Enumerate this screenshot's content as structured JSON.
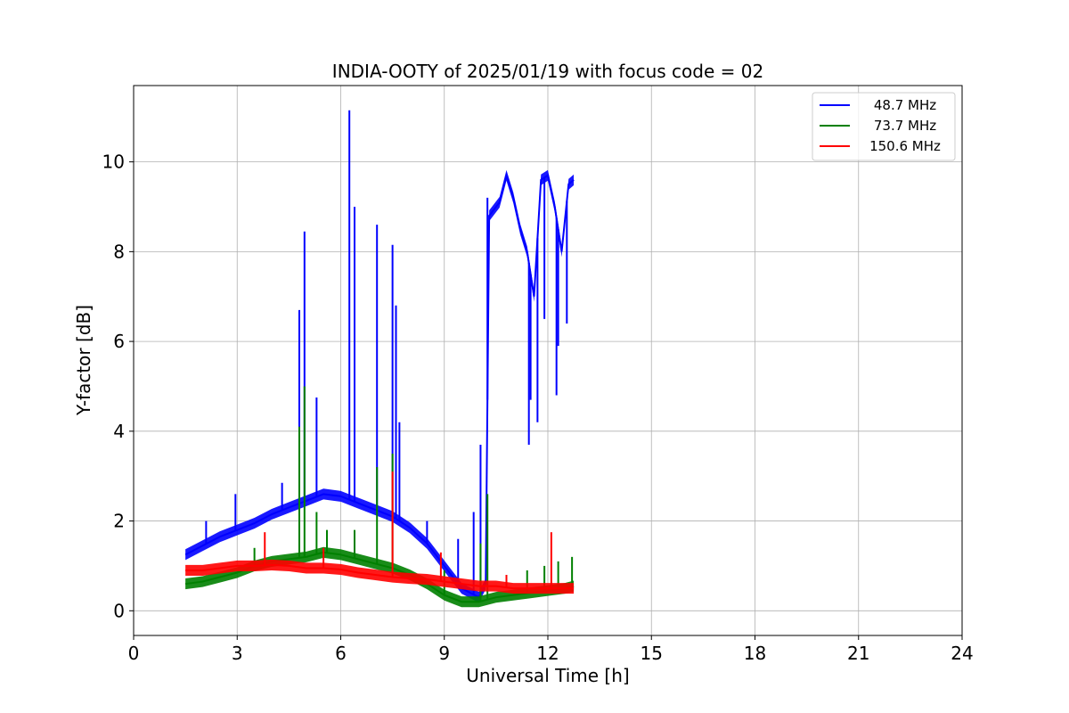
{
  "chart_data": {
    "type": "line",
    "title": "INDIA-OOTY of 2025/01/19 with focus code = 02",
    "xlabel": "Universal Time [h]",
    "ylabel": "Y-factor [dB]",
    "xlim": [
      0,
      24
    ],
    "ylim": [
      -0.55,
      11.7
    ],
    "xticks": [
      0,
      3,
      6,
      9,
      12,
      15,
      18,
      21,
      24
    ],
    "yticks": [
      0,
      2,
      4,
      6,
      8,
      10
    ],
    "grid": true,
    "legend_position": "top-right",
    "series": [
      {
        "name": "48.7 MHz",
        "color": "#0000ff",
        "x": [
          1.5,
          2.0,
          2.5,
          3.0,
          3.5,
          4.0,
          4.5,
          5.0,
          5.5,
          6.0,
          6.5,
          7.0,
          7.5,
          8.0,
          8.5,
          9.0,
          9.5,
          10.0,
          10.2,
          10.3,
          10.6,
          10.8,
          11.0,
          11.2,
          11.4,
          11.6,
          11.8,
          12.0,
          12.2,
          12.4,
          12.6,
          12.75
        ],
        "y": [
          1.25,
          1.45,
          1.65,
          1.8,
          1.95,
          2.15,
          2.3,
          2.45,
          2.6,
          2.55,
          2.4,
          2.25,
          2.1,
          1.85,
          1.5,
          1.0,
          0.5,
          0.3,
          0.6,
          8.8,
          9.1,
          9.7,
          9.2,
          8.5,
          8.0,
          7.0,
          9.6,
          9.7,
          9.0,
          8.0,
          9.5,
          9.6
        ],
        "spikes": [
          [
            2.1,
            2.0
          ],
          [
            2.95,
            2.6
          ],
          [
            4.3,
            2.85
          ],
          [
            4.8,
            6.7
          ],
          [
            4.95,
            8.45
          ],
          [
            5.3,
            4.75
          ],
          [
            6.25,
            11.15
          ],
          [
            6.4,
            9.0
          ],
          [
            7.05,
            8.6
          ],
          [
            7.5,
            8.15
          ],
          [
            7.6,
            6.8
          ],
          [
            7.7,
            4.2
          ],
          [
            8.5,
            2.0
          ],
          [
            9.4,
            1.6
          ],
          [
            9.85,
            2.2
          ],
          [
            10.05,
            3.7
          ],
          [
            10.25,
            9.2
          ],
          [
            11.45,
            3.7
          ],
          [
            11.5,
            4.7
          ],
          [
            11.7,
            4.2
          ],
          [
            11.9,
            6.5
          ],
          [
            12.25,
            4.8
          ],
          [
            12.3,
            5.9
          ],
          [
            12.55,
            6.4
          ]
        ]
      },
      {
        "name": "73.7 MHz",
        "color": "#008000",
        "x": [
          1.5,
          2.0,
          2.5,
          3.0,
          3.5,
          4.0,
          4.5,
          5.0,
          5.5,
          6.0,
          6.5,
          7.0,
          7.5,
          8.0,
          8.5,
          9.0,
          9.5,
          10.0,
          10.5,
          11.0,
          11.5,
          12.0,
          12.5,
          12.75
        ],
        "y": [
          0.6,
          0.65,
          0.75,
          0.85,
          1.0,
          1.1,
          1.15,
          1.2,
          1.3,
          1.25,
          1.15,
          1.05,
          0.95,
          0.8,
          0.6,
          0.35,
          0.2,
          0.2,
          0.3,
          0.35,
          0.4,
          0.45,
          0.5,
          0.55
        ],
        "spikes": [
          [
            3.5,
            1.4
          ],
          [
            4.8,
            4.1
          ],
          [
            4.95,
            5.0
          ],
          [
            5.3,
            2.2
          ],
          [
            5.6,
            1.8
          ],
          [
            6.4,
            1.8
          ],
          [
            7.05,
            3.2
          ],
          [
            7.5,
            3.5
          ],
          [
            9.0,
            0.9
          ],
          [
            10.05,
            1.5
          ],
          [
            10.25,
            2.6
          ],
          [
            11.4,
            0.9
          ],
          [
            11.9,
            1.0
          ],
          [
            12.3,
            1.1
          ],
          [
            12.7,
            1.2
          ]
        ]
      },
      {
        "name": "150.6 MHz",
        "color": "#ff0000",
        "x": [
          1.5,
          2.0,
          2.5,
          3.0,
          3.5,
          4.0,
          4.5,
          5.0,
          5.5,
          6.0,
          6.5,
          7.0,
          7.5,
          8.0,
          8.5,
          9.0,
          9.5,
          10.0,
          10.5,
          11.0,
          11.5,
          12.0,
          12.5,
          12.75
        ],
        "y": [
          0.9,
          0.9,
          0.95,
          1.0,
          1.0,
          1.02,
          1.0,
          0.95,
          0.95,
          0.92,
          0.85,
          0.8,
          0.75,
          0.72,
          0.7,
          0.65,
          0.6,
          0.55,
          0.55,
          0.5,
          0.5,
          0.5,
          0.5,
          0.5
        ],
        "spikes": [
          [
            3.8,
            1.75
          ],
          [
            5.5,
            1.4
          ],
          [
            7.5,
            3.1
          ],
          [
            8.9,
            1.3
          ],
          [
            10.8,
            0.8
          ],
          [
            12.1,
            1.75
          ]
        ]
      }
    ]
  }
}
